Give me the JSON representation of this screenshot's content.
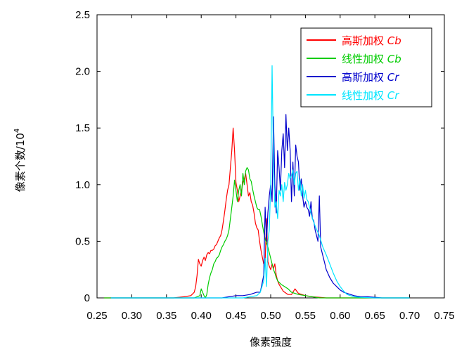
{
  "chart_data": {
    "type": "line",
    "xlabel": "像素强度",
    "ylabel": "像素个数/10",
    "ylabel_sup": "4",
    "xlim": [
      0.25,
      0.75
    ],
    "ylim": [
      0,
      2.5
    ],
    "xticks": [
      0.25,
      0.3,
      0.35,
      0.4,
      0.45,
      0.5,
      0.55,
      0.6,
      0.65,
      0.7,
      0.75
    ],
    "xtick_labels": [
      "0.25",
      "0.30",
      "0.35",
      "0.40",
      "0.45",
      "0.50",
      "0.55",
      "0.60",
      "0.65",
      "0.70",
      "0.75"
    ],
    "yticks": [
      0,
      0.5,
      1.0,
      1.5,
      2.0,
      2.5
    ],
    "ytick_labels": [
      "0",
      "0.5",
      "1.0",
      "1.5",
      "2.0",
      "2.5"
    ],
    "grid": false,
    "legend_position": "top-right",
    "series": [
      {
        "name": "高斯加权",
        "name_suffix": "Cb",
        "color": "#ff0000",
        "x": [
          0.26,
          0.36,
          0.375,
          0.385,
          0.39,
          0.392,
          0.394,
          0.396,
          0.398,
          0.4,
          0.402,
          0.404,
          0.406,
          0.408,
          0.41,
          0.412,
          0.414,
          0.416,
          0.418,
          0.42,
          0.422,
          0.424,
          0.426,
          0.428,
          0.43,
          0.432,
          0.434,
          0.436,
          0.438,
          0.44,
          0.442,
          0.444,
          0.446,
          0.448,
          0.45,
          0.452,
          0.454,
          0.456,
          0.458,
          0.46,
          0.462,
          0.464,
          0.466,
          0.468,
          0.47,
          0.472,
          0.474,
          0.476,
          0.478,
          0.48,
          0.482,
          0.484,
          0.486,
          0.488,
          0.49,
          0.492,
          0.494,
          0.496,
          0.498,
          0.5,
          0.502,
          0.504,
          0.506,
          0.508,
          0.51,
          0.512,
          0.514,
          0.516,
          0.518,
          0.52,
          0.525,
          0.53,
          0.535,
          0.54,
          0.55,
          0.56,
          0.58,
          0.7
        ],
        "values": [
          0,
          0,
          0.01,
          0.02,
          0.05,
          0.1,
          0.2,
          0.34,
          0.3,
          0.28,
          0.33,
          0.36,
          0.33,
          0.38,
          0.4,
          0.39,
          0.42,
          0.42,
          0.43,
          0.46,
          0.47,
          0.5,
          0.53,
          0.55,
          0.6,
          0.68,
          0.77,
          0.87,
          0.95,
          1.0,
          1.15,
          1.3,
          1.5,
          1.3,
          1.02,
          0.95,
          0.85,
          0.9,
          0.95,
          1.02,
          1.05,
          1.1,
          1.0,
          0.9,
          0.93,
          0.85,
          0.82,
          0.75,
          0.66,
          0.62,
          0.6,
          0.5,
          0.42,
          0.36,
          0.3,
          0.32,
          0.7,
          0.32,
          0.28,
          0.25,
          0.3,
          0.26,
          0.3,
          0.2,
          0.15,
          0.12,
          0.1,
          0.08,
          0.06,
          0.05,
          0.03,
          0.03,
          0.08,
          0.04,
          0.02,
          0.01,
          0,
          0
        ]
      },
      {
        "name": "线性加权",
        "name_suffix": "Cb",
        "color": "#00cc00",
        "x": [
          0.26,
          0.39,
          0.398,
          0.4,
          0.404,
          0.406,
          0.408,
          0.41,
          0.412,
          0.414,
          0.416,
          0.418,
          0.42,
          0.422,
          0.424,
          0.426,
          0.428,
          0.43,
          0.432,
          0.434,
          0.436,
          0.438,
          0.44,
          0.442,
          0.444,
          0.446,
          0.448,
          0.45,
          0.452,
          0.454,
          0.456,
          0.458,
          0.46,
          0.462,
          0.464,
          0.466,
          0.468,
          0.47,
          0.472,
          0.474,
          0.476,
          0.478,
          0.48,
          0.482,
          0.484,
          0.486,
          0.488,
          0.49,
          0.492,
          0.494,
          0.496,
          0.498,
          0.5,
          0.502,
          0.504,
          0.506,
          0.508,
          0.51,
          0.515,
          0.52,
          0.525,
          0.53,
          0.54,
          0.55,
          0.57,
          0.7
        ],
        "values": [
          0,
          0,
          0.02,
          0.08,
          0.02,
          0.0,
          0.03,
          0.12,
          0.18,
          0.22,
          0.25,
          0.3,
          0.32,
          0.35,
          0.36,
          0.38,
          0.42,
          0.45,
          0.47,
          0.5,
          0.52,
          0.55,
          0.6,
          0.7,
          0.8,
          0.9,
          1.04,
          0.95,
          0.85,
          0.95,
          1.0,
          0.9,
          1.1,
          1.0,
          1.12,
          1.15,
          1.13,
          1.05,
          1.03,
          0.96,
          0.9,
          0.85,
          0.8,
          0.78,
          0.78,
          0.72,
          0.65,
          0.58,
          0.52,
          0.48,
          0.45,
          0.4,
          0.35,
          0.3,
          0.25,
          0.22,
          0.18,
          0.15,
          0.12,
          0.1,
          0.08,
          0.05,
          0.03,
          0.02,
          0,
          0
        ]
      },
      {
        "name": "高斯加权",
        "name_suffix": "Cr",
        "color": "#0000cc",
        "x": [
          0.27,
          0.43,
          0.44,
          0.45,
          0.46,
          0.47,
          0.48,
          0.485,
          0.49,
          0.492,
          0.494,
          0.496,
          0.498,
          0.5,
          0.502,
          0.504,
          0.506,
          0.508,
          0.51,
          0.512,
          0.514,
          0.516,
          0.518,
          0.52,
          0.522,
          0.524,
          0.526,
          0.528,
          0.53,
          0.532,
          0.534,
          0.536,
          0.538,
          0.54,
          0.542,
          0.544,
          0.546,
          0.548,
          0.55,
          0.552,
          0.554,
          0.556,
          0.558,
          0.56,
          0.562,
          0.564,
          0.566,
          0.568,
          0.57,
          0.572,
          0.574,
          0.576,
          0.578,
          0.58,
          0.585,
          0.59,
          0.595,
          0.6,
          0.605,
          0.61,
          0.615,
          0.62,
          0.63,
          0.64,
          0.66,
          0.7
        ],
        "values": [
          0,
          0,
          0.01,
          0.02,
          0.02,
          0.03,
          0.05,
          0.05,
          0.2,
          0.8,
          0.5,
          0.75,
          0.9,
          1.0,
          0.85,
          1.6,
          1.0,
          0.75,
          1.3,
          1.15,
          0.95,
          1.3,
          1.45,
          1.15,
          1.62,
          1.3,
          1.5,
          1.3,
          0.85,
          1.2,
          0.9,
          1.35,
          1.25,
          1.2,
          0.95,
          1.05,
          0.9,
          0.8,
          0.85,
          0.8,
          0.78,
          0.72,
          0.85,
          0.7,
          0.68,
          0.6,
          0.55,
          0.5,
          0.9,
          0.45,
          0.4,
          0.35,
          0.3,
          0.25,
          0.18,
          0.13,
          0.1,
          0.07,
          0.05,
          0.04,
          0.03,
          0.02,
          0.01,
          0.01,
          0,
          0
        ]
      },
      {
        "name": "线性加权",
        "name_suffix": "Cr",
        "color": "#00e5ff",
        "x": [
          0.27,
          0.46,
          0.47,
          0.48,
          0.485,
          0.49,
          0.492,
          0.494,
          0.496,
          0.498,
          0.5,
          0.502,
          0.504,
          0.506,
          0.508,
          0.51,
          0.512,
          0.514,
          0.516,
          0.518,
          0.52,
          0.522,
          0.524,
          0.526,
          0.528,
          0.53,
          0.532,
          0.534,
          0.536,
          0.538,
          0.54,
          0.542,
          0.544,
          0.546,
          0.548,
          0.55,
          0.552,
          0.554,
          0.556,
          0.558,
          0.56,
          0.565,
          0.57,
          0.575,
          0.58,
          0.585,
          0.59,
          0.595,
          0.6,
          0.605,
          0.61,
          0.62,
          0.63,
          0.65,
          0.7
        ],
        "values": [
          0,
          0,
          0.01,
          0.02,
          0.05,
          0.15,
          0.35,
          0.1,
          0.5,
          0.6,
          1.0,
          2.05,
          1.2,
          0.8,
          0.85,
          0.7,
          0.95,
          0.9,
          1.0,
          0.85,
          1.02,
          0.95,
          1.0,
          1.1,
          1.05,
          1.08,
          1.13,
          1.0,
          1.1,
          1.12,
          0.95,
          1.05,
          0.9,
          1.0,
          0.88,
          0.95,
          0.87,
          0.85,
          0.8,
          0.75,
          0.7,
          0.62,
          0.55,
          0.45,
          0.38,
          0.3,
          0.22,
          0.15,
          0.1,
          0.06,
          0.03,
          0.01,
          0.005,
          0,
          0
        ]
      }
    ]
  }
}
